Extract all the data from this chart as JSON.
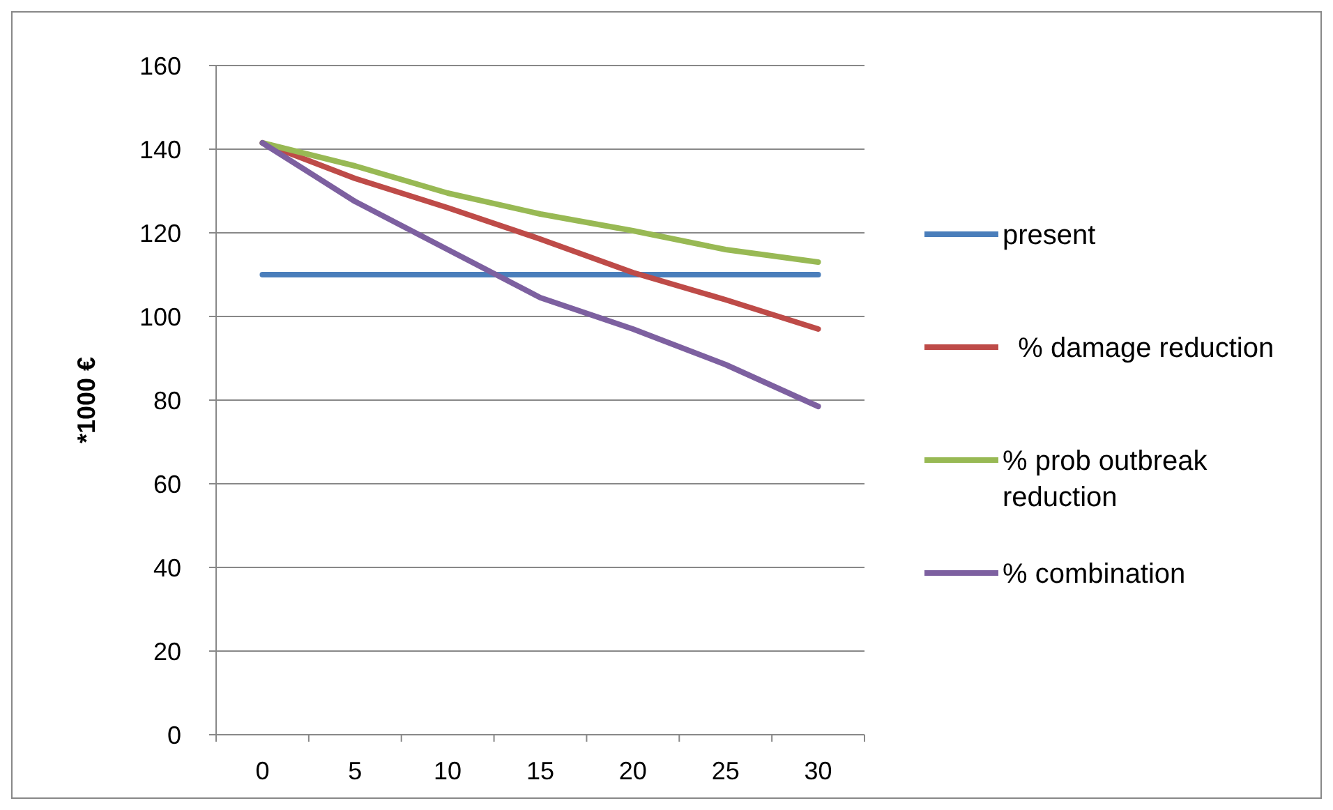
{
  "chart_data": {
    "type": "line",
    "ylabel": "*1000 €",
    "categories": [
      "0",
      "5",
      "10",
      "15",
      "20",
      "25",
      "30"
    ],
    "ylim": [
      0,
      160
    ],
    "yticks": [
      0,
      20,
      40,
      60,
      80,
      100,
      120,
      140,
      160
    ],
    "grid": "y",
    "legend": "right",
    "marker": "none",
    "line_style": "solid",
    "series": [
      {
        "name": "present",
        "color": "#4a7ebb",
        "values": [
          110,
          110,
          110,
          110,
          110,
          110,
          110
        ]
      },
      {
        "name": " % damage reduction",
        "color": "#be4b48",
        "values": [
          141.5,
          133,
          126,
          118.5,
          110.5,
          104,
          97
        ]
      },
      {
        "name": "% prob outbreak reduction",
        "color": "#98b954",
        "values": [
          141.5,
          136,
          129.5,
          124.5,
          120.5,
          116,
          113
        ]
      },
      {
        "name": "% combination",
        "color": "#7d60a0",
        "values": [
          141.5,
          127.5,
          116,
          104.5,
          97,
          88.5,
          78.5
        ]
      }
    ]
  }
}
